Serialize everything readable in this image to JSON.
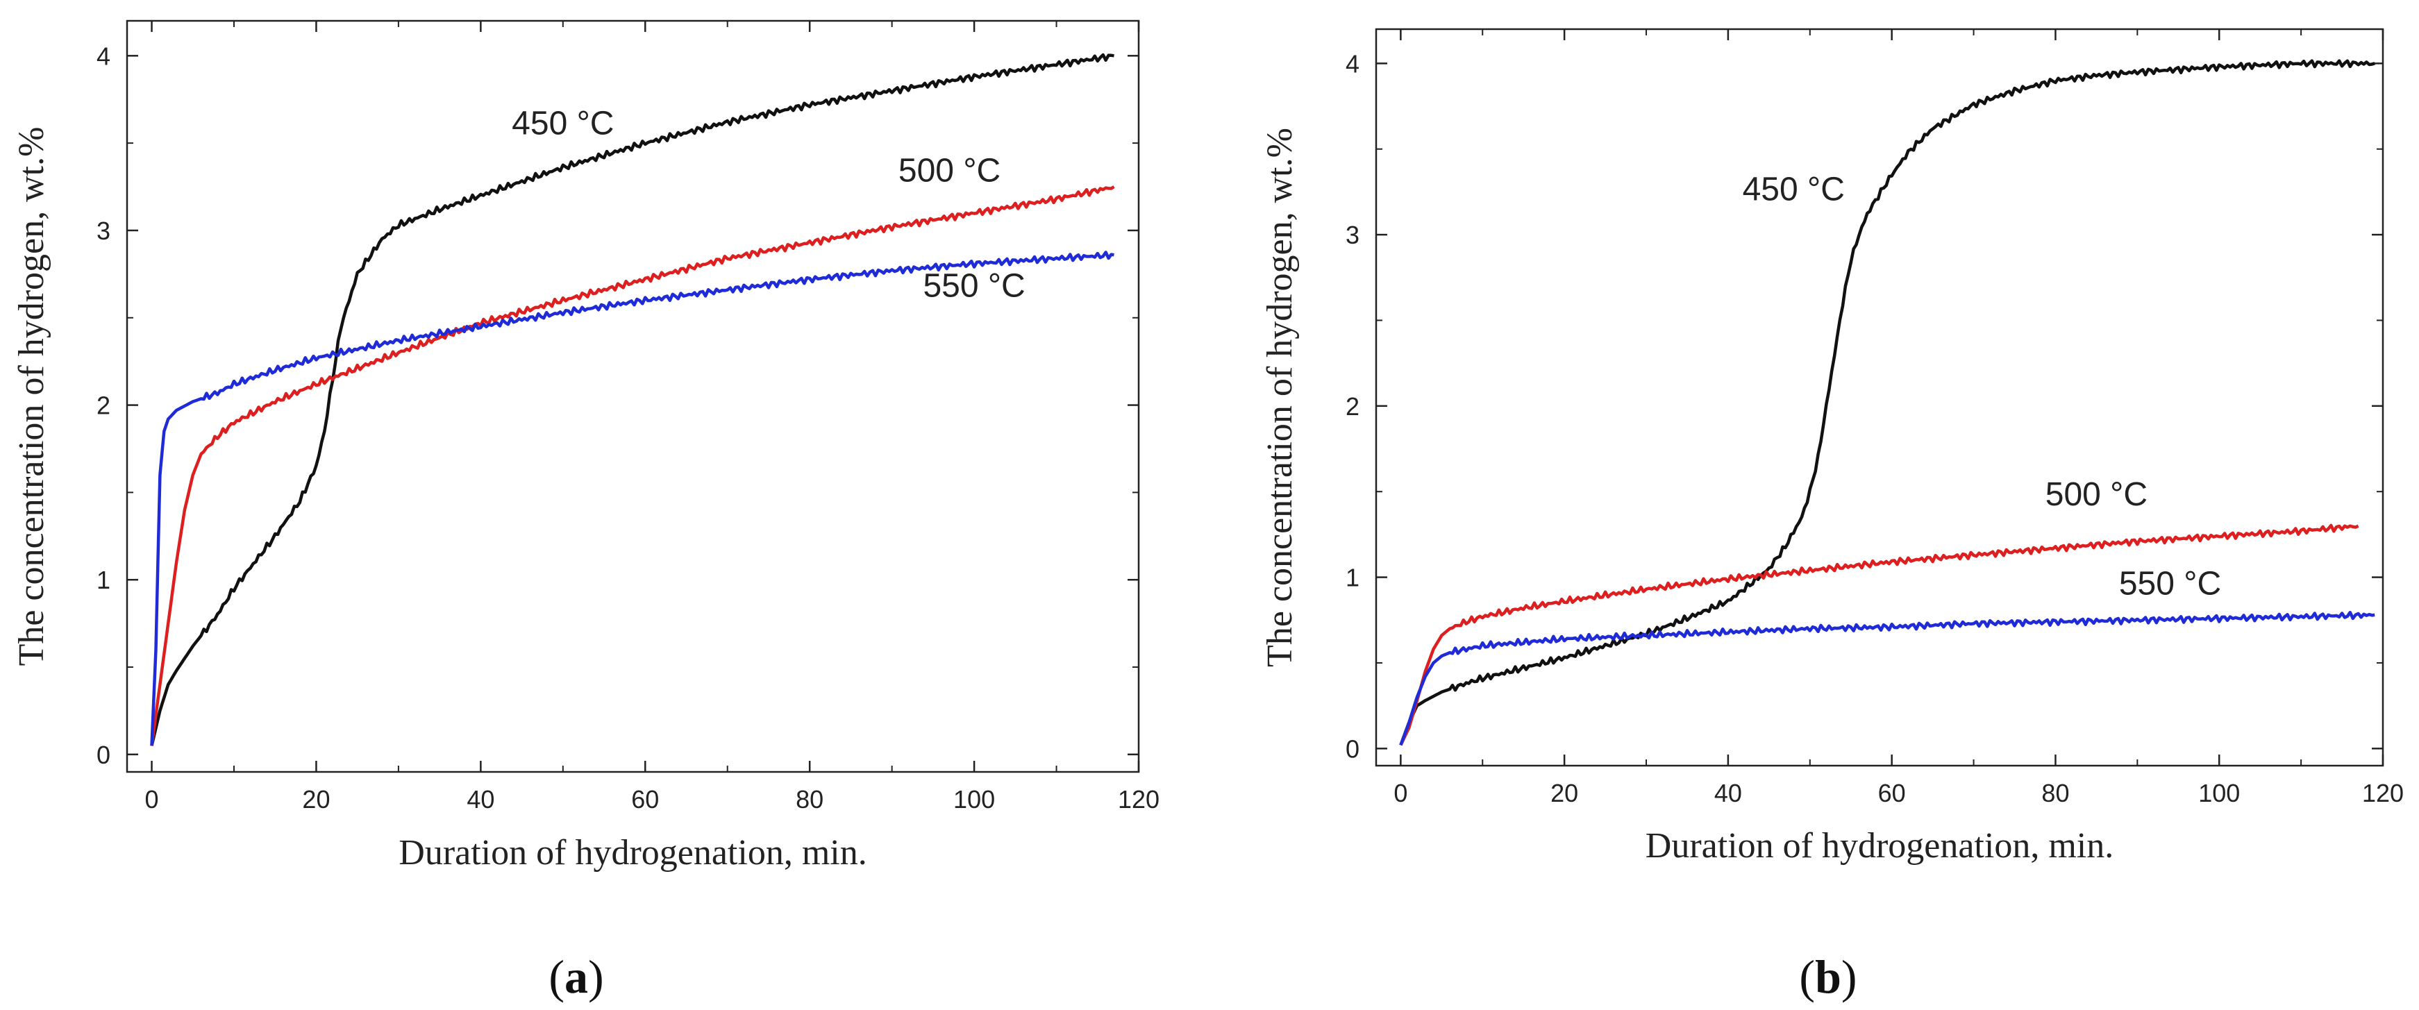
{
  "chart_data": [
    {
      "type": "line",
      "panel": "a",
      "xlabel": "Duration of hydrogenation, min.",
      "ylabel": "The concentration of hydrogen, wt.%",
      "xlim": [
        -3,
        120
      ],
      "ylim": [
        -0.1,
        4.2
      ],
      "xticks": [
        0,
        20,
        40,
        60,
        80,
        100,
        120
      ],
      "yticks": [
        0,
        1,
        2,
        3,
        4
      ],
      "series": [
        {
          "name": "450 °C",
          "color": "#111111",
          "x": [
            0,
            1,
            2,
            3,
            5,
            8,
            10,
            15,
            18,
            20,
            21,
            22,
            23,
            25,
            28,
            30,
            35,
            40,
            45,
            50,
            60,
            70,
            80,
            90,
            100,
            110,
            117
          ],
          "y": [
            0.05,
            0.25,
            0.4,
            0.48,
            0.62,
            0.8,
            0.95,
            1.25,
            1.45,
            1.65,
            1.85,
            2.15,
            2.45,
            2.75,
            2.95,
            3.03,
            3.12,
            3.2,
            3.28,
            3.36,
            3.5,
            3.62,
            3.72,
            3.8,
            3.88,
            3.95,
            4.0
          ]
        },
        {
          "name": "500 °C",
          "color": "#dd1f1f",
          "x": [
            0,
            1,
            2,
            3,
            4,
            5,
            6,
            8,
            10,
            15,
            20,
            30,
            40,
            50,
            60,
            70,
            80,
            90,
            100,
            110,
            117
          ],
          "y": [
            0.05,
            0.4,
            0.75,
            1.1,
            1.4,
            1.6,
            1.72,
            1.82,
            1.9,
            2.02,
            2.12,
            2.3,
            2.47,
            2.6,
            2.72,
            2.84,
            2.93,
            3.02,
            3.1,
            3.18,
            3.25
          ]
        },
        {
          "name": "550 °C",
          "color": "#1f2bd6",
          "x": [
            0,
            0.5,
            1,
            1.5,
            2,
            3,
            5,
            8,
            10,
            15,
            20,
            25,
            30,
            40,
            50,
            60,
            70,
            80,
            90,
            100,
            110,
            117
          ],
          "y": [
            0.05,
            0.6,
            1.6,
            1.85,
            1.92,
            1.97,
            2.02,
            2.07,
            2.12,
            2.2,
            2.27,
            2.32,
            2.37,
            2.45,
            2.53,
            2.6,
            2.66,
            2.72,
            2.77,
            2.81,
            2.84,
            2.86
          ]
        }
      ],
      "annotations": [
        {
          "text": "450 °C",
          "x": 50,
          "y": 3.55
        },
        {
          "text": "500 °C",
          "x": 97,
          "y": 3.28
        },
        {
          "text": "550 °C",
          "x": 100,
          "y": 2.62
        }
      ]
    },
    {
      "type": "line",
      "panel": "b",
      "xlabel": "Duration of hydrogenation, min.",
      "ylabel": "The concentration of hydrogen, wt.%",
      "xlim": [
        -3,
        120
      ],
      "ylim": [
        -0.1,
        4.2
      ],
      "xticks": [
        0,
        20,
        40,
        60,
        80,
        100,
        120
      ],
      "yticks": [
        0,
        1,
        2,
        3,
        4
      ],
      "series": [
        {
          "name": "450 °C",
          "color": "#111111",
          "x": [
            0,
            1,
            2,
            3,
            5,
            8,
            10,
            15,
            20,
            25,
            30,
            35,
            40,
            43,
            45,
            47,
            49,
            50,
            51,
            52,
            53,
            54,
            55,
            56,
            57,
            58,
            60,
            62,
            65,
            70,
            75,
            80,
            85,
            90,
            100,
            110,
            119
          ],
          "y": [
            0.02,
            0.15,
            0.25,
            0.28,
            0.33,
            0.38,
            0.41,
            0.47,
            0.53,
            0.6,
            0.67,
            0.76,
            0.86,
            0.97,
            1.05,
            1.18,
            1.35,
            1.5,
            1.7,
            2.0,
            2.3,
            2.6,
            2.85,
            3.0,
            3.12,
            3.2,
            3.35,
            3.48,
            3.62,
            3.76,
            3.84,
            3.9,
            3.93,
            3.95,
            3.98,
            4.0,
            4.0
          ]
        },
        {
          "name": "500 °C",
          "color": "#dd1f1f",
          "x": [
            0,
            1,
            2,
            3,
            4,
            5,
            6,
            8,
            10,
            15,
            20,
            30,
            40,
            50,
            60,
            70,
            80,
            90,
            100,
            110,
            117
          ],
          "y": [
            0.02,
            0.12,
            0.28,
            0.45,
            0.58,
            0.66,
            0.7,
            0.74,
            0.77,
            0.82,
            0.86,
            0.93,
            0.99,
            1.04,
            1.09,
            1.13,
            1.17,
            1.21,
            1.24,
            1.27,
            1.3
          ]
        },
        {
          "name": "550 °C",
          "color": "#1f2bd6",
          "x": [
            0,
            1,
            2,
            3,
            4,
            5,
            6,
            8,
            10,
            15,
            20,
            30,
            40,
            50,
            60,
            70,
            80,
            90,
            100,
            110,
            119
          ],
          "y": [
            0.02,
            0.15,
            0.3,
            0.42,
            0.5,
            0.54,
            0.56,
            0.58,
            0.6,
            0.62,
            0.64,
            0.66,
            0.68,
            0.7,
            0.71,
            0.73,
            0.74,
            0.75,
            0.76,
            0.77,
            0.78
          ]
        }
      ],
      "annotations": [
        {
          "text": "450 °C",
          "x": 48,
          "y": 3.2
        },
        {
          "text": "500 °C",
          "x": 85,
          "y": 1.42
        },
        {
          "text": "550 °C",
          "x": 94,
          "y": 0.9
        }
      ]
    }
  ],
  "captions": {
    "a": {
      "open": "(",
      "letter": "a",
      "close": ")"
    },
    "b": {
      "open": "(",
      "letter": "b",
      "close": ")"
    }
  }
}
